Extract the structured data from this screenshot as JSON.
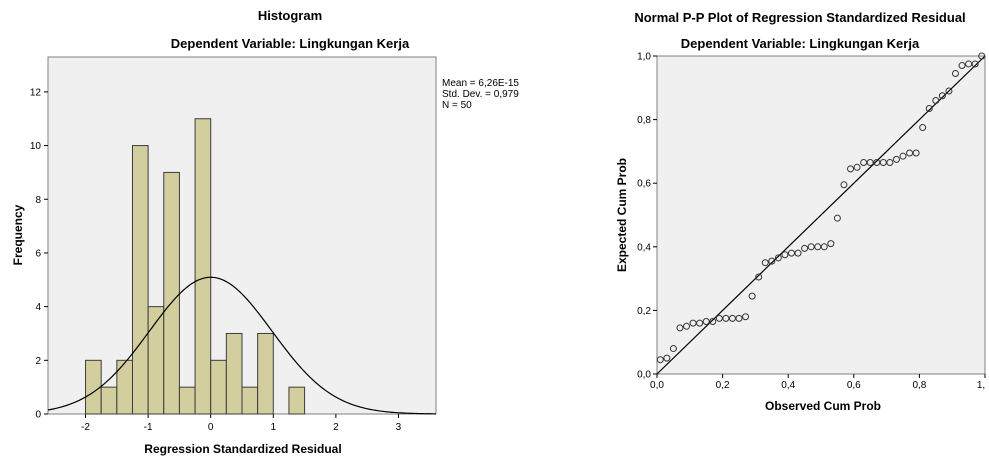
{
  "histogram": {
    "title": "Histogram",
    "subtitle": "Dependent Variable: Lingkungan Kerja",
    "stats": [
      "Mean = 6,26E-15",
      "Std. Dev. = 0,979",
      "N = 50"
    ],
    "colors": {
      "plot_bg": "#f0f0f0",
      "bar_fill": "#d3ce9e",
      "bar_stroke": "#3c3c3c",
      "curve": "#000000"
    }
  },
  "pp_plot": {
    "title": "Normal P-P Plot of Regression Standardized Residual",
    "subtitle": "Dependent Variable: Lingkungan Kerja",
    "colors": {
      "plot_bg": "#f0f0f0",
      "marker_stroke": "#333333",
      "line": "#000000"
    }
  },
  "chart_data": [
    {
      "type": "bar",
      "title": "Histogram",
      "subtitle": "Dependent Variable: Lingkungan Kerja",
      "xlabel": "Regression Standardized Residual",
      "ylabel": "Frequency",
      "xlim": [
        -2.6,
        3.6
      ],
      "ylim": [
        0,
        13.3
      ],
      "x_ticks": [
        -2,
        -1,
        0,
        1,
        2,
        3
      ],
      "y_ticks": [
        0,
        2,
        4,
        6,
        8,
        10,
        12
      ],
      "bin_width": 0.25,
      "bins": [
        {
          "start": -2.0,
          "end": -1.75,
          "count": 2
        },
        {
          "start": -1.75,
          "end": -1.5,
          "count": 1
        },
        {
          "start": -1.5,
          "end": -1.25,
          "count": 2
        },
        {
          "start": -1.25,
          "end": -1.0,
          "count": 10
        },
        {
          "start": -1.0,
          "end": -0.75,
          "count": 4
        },
        {
          "start": -0.75,
          "end": -0.5,
          "count": 9
        },
        {
          "start": -0.5,
          "end": -0.25,
          "count": 1
        },
        {
          "start": -0.25,
          "end": 0.0,
          "count": 11
        },
        {
          "start": 0.0,
          "end": 0.25,
          "count": 2
        },
        {
          "start": 0.25,
          "end": 0.5,
          "count": 3
        },
        {
          "start": 0.5,
          "end": 0.75,
          "count": 1
        },
        {
          "start": 0.75,
          "end": 1.0,
          "count": 3
        },
        {
          "start": 1.0,
          "end": 1.25,
          "count": 0
        },
        {
          "start": 1.25,
          "end": 1.5,
          "count": 1
        }
      ],
      "normal_curve": {
        "mean": 0.0,
        "sd": 0.979,
        "n": 50
      }
    },
    {
      "type": "scatter",
      "title": "Normal P-P Plot of Regression Standardized Residual",
      "subtitle": "Dependent Variable: Lingkungan Kerja",
      "xlabel": "Observed Cum Prob",
      "ylabel": "Expected Cum Prob",
      "xlim": [
        0,
        1
      ],
      "ylim": [
        0,
        1
      ],
      "x_ticks": [
        "0,0",
        "0,2",
        "0,4",
        "0,6",
        "0,8",
        "1,"
      ],
      "y_ticks": [
        "0,0",
        "0,2",
        "0,4",
        "0,6",
        "0,8",
        "1,0"
      ],
      "reference_line": [
        [
          0,
          0
        ],
        [
          1,
          1
        ]
      ],
      "points": [
        [
          0.01,
          0.045
        ],
        [
          0.03,
          0.05
        ],
        [
          0.05,
          0.08
        ],
        [
          0.07,
          0.145
        ],
        [
          0.09,
          0.15
        ],
        [
          0.11,
          0.16
        ],
        [
          0.13,
          0.16
        ],
        [
          0.15,
          0.165
        ],
        [
          0.17,
          0.165
        ],
        [
          0.19,
          0.175
        ],
        [
          0.21,
          0.175
        ],
        [
          0.23,
          0.175
        ],
        [
          0.25,
          0.175
        ],
        [
          0.27,
          0.18
        ],
        [
          0.29,
          0.245
        ],
        [
          0.31,
          0.305
        ],
        [
          0.33,
          0.35
        ],
        [
          0.35,
          0.355
        ],
        [
          0.37,
          0.365
        ],
        [
          0.39,
          0.375
        ],
        [
          0.41,
          0.38
        ],
        [
          0.43,
          0.38
        ],
        [
          0.45,
          0.395
        ],
        [
          0.47,
          0.4
        ],
        [
          0.49,
          0.4
        ],
        [
          0.51,
          0.4
        ],
        [
          0.53,
          0.41
        ],
        [
          0.55,
          0.49
        ],
        [
          0.57,
          0.595
        ],
        [
          0.59,
          0.645
        ],
        [
          0.61,
          0.65
        ],
        [
          0.63,
          0.665
        ],
        [
          0.65,
          0.665
        ],
        [
          0.67,
          0.665
        ],
        [
          0.69,
          0.665
        ],
        [
          0.71,
          0.665
        ],
        [
          0.73,
          0.675
        ],
        [
          0.75,
          0.685
        ],
        [
          0.77,
          0.695
        ],
        [
          0.79,
          0.695
        ],
        [
          0.81,
          0.775
        ],
        [
          0.83,
          0.835
        ],
        [
          0.85,
          0.86
        ],
        [
          0.87,
          0.875
        ],
        [
          0.89,
          0.89
        ],
        [
          0.91,
          0.945
        ],
        [
          0.93,
          0.97
        ],
        [
          0.95,
          0.975
        ],
        [
          0.97,
          0.975
        ],
        [
          0.99,
          1.0
        ]
      ]
    }
  ]
}
